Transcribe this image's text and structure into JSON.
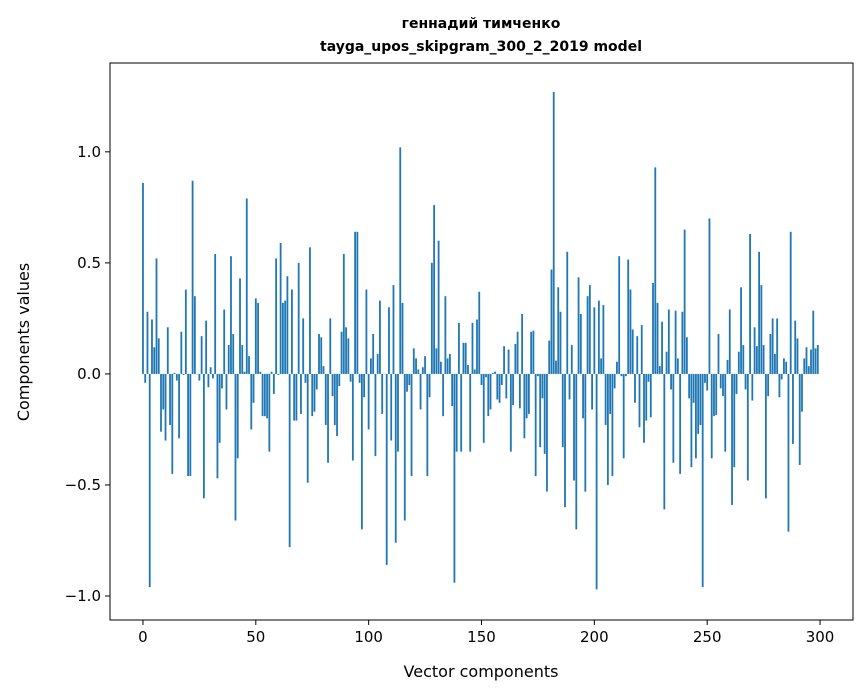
{
  "chart_data": {
    "type": "bar",
    "title": "геннадий тимченко",
    "subtitle": "tayga_upos_skipgram_300_2_2019 model",
    "xlabel": "Vector components",
    "ylabel": "Components values",
    "xlim": [
      -14.6,
      314.6
    ],
    "ylim": [
      -1.108,
      1.4
    ],
    "xticks": [
      0,
      50,
      100,
      150,
      200,
      250,
      300
    ],
    "xtick_labels": [
      "0",
      "50",
      "100",
      "150",
      "200",
      "250",
      "300"
    ],
    "yticks": [
      -1.0,
      -0.5,
      0.0,
      0.5,
      1.0
    ],
    "ytick_labels": [
      "−1.0",
      "−0.5",
      "0.0",
      "0.5",
      "1.0"
    ],
    "grid": false,
    "color": "#1f77b4",
    "values": [
      0.86,
      -0.04,
      0.28,
      -0.96,
      0.245,
      0.12,
      0.52,
      0.16,
      -0.26,
      -0.16,
      -0.3,
      0.21,
      -0.23,
      -0.45,
      0.005,
      -0.03,
      -0.29,
      0.19,
      -0.005,
      0.38,
      -0.46,
      -0.46,
      0.87,
      0.35,
      0.0,
      -0.03,
      0.17,
      -0.56,
      0.24,
      -0.06,
      0.03,
      -0.02,
      0.54,
      -0.47,
      -0.31,
      -0.065,
      0.29,
      -0.16,
      0.13,
      0.53,
      0.18,
      -0.66,
      -0.38,
      0.43,
      0.13,
      0.01,
      0.79,
      0.08,
      -0.25,
      -0.13,
      0.34,
      0.32,
      0.01,
      -0.19,
      -0.19,
      -0.2,
      -0.35,
      0.01,
      -0.09,
      0.52,
      -0.005,
      0.59,
      0.32,
      0.33,
      0.44,
      -0.78,
      0.38,
      -0.21,
      -0.21,
      0.5,
      -0.18,
      0.25,
      -0.04,
      -0.49,
      0.57,
      -0.19,
      -0.17,
      -0.07,
      0.18,
      0.165,
      0.035,
      -0.23,
      -0.4,
      0.25,
      -0.1,
      -0.23,
      -0.28,
      -0.055,
      0.19,
      0.54,
      0.21,
      0.16,
      -0.035,
      -0.39,
      0.64,
      0.64,
      -0.04,
      -0.7,
      -0.105,
      0.38,
      -0.25,
      0.07,
      0.18,
      -0.37,
      0.09,
      0.33,
      -0.18,
      0.0,
      -0.86,
      0.3,
      -0.3,
      0.4,
      -0.76,
      -0.35,
      1.02,
      0.32,
      -0.66,
      -0.08,
      -0.05,
      -0.46,
      0.115,
      0.07,
      0.02,
      -0.16,
      0.03,
      0.08,
      -0.46,
      -0.105,
      0.5,
      0.76,
      0.115,
      0.6,
      0.055,
      -0.19,
      0.35,
      0.07,
      0.09,
      -0.145,
      -0.94,
      -0.35,
      0.23,
      -0.35,
      0.14,
      0.14,
      0.04,
      -0.35,
      0.23,
      0.02,
      0.245,
      0.37,
      -0.05,
      -0.31,
      -0.015,
      -0.19,
      -0.16,
      0.005,
      0.01,
      -0.115,
      -0.13,
      -0.05,
      0.125,
      -0.11,
      0.11,
      -0.35,
      -0.14,
      0.135,
      0.19,
      -0.155,
      0.27,
      -0.29,
      -0.2,
      -0.18,
      0.19,
      0.195,
      -0.46,
      -0.01,
      -0.33,
      -0.11,
      -0.36,
      -0.53,
      0.15,
      0.47,
      1.27,
      0.06,
      0.39,
      0.28,
      -0.33,
      -0.6,
      0.55,
      -0.115,
      0.13,
      -0.48,
      -0.7,
      0.435,
      0.27,
      -0.2,
      -0.53,
      0.35,
      0.4,
      -0.16,
      0.3,
      -0.97,
      0.33,
      0.07,
      0.31,
      -0.23,
      -0.5,
      -0.18,
      -0.46,
      -0.065,
      0.055,
      0.53,
      -0.01,
      -0.38,
      -0.01,
      0.515,
      0.38,
      0.2,
      -0.13,
      0.17,
      -0.24,
      0.22,
      -0.31,
      -0.21,
      -0.035,
      -0.195,
      0.41,
      0.93,
      0.32,
      0.035,
      0.235,
      -0.61,
      0.1,
      0.29,
      -0.07,
      -0.4,
      0.285,
      0.07,
      -0.45,
      0.28,
      0.65,
      0.165,
      -0.11,
      -0.42,
      -0.13,
      -0.38,
      -0.27,
      -0.23,
      -0.96,
      -0.04,
      -0.075,
      0.7,
      -0.38,
      -0.19,
      -0.185,
      0.18,
      -0.065,
      -0.1,
      -0.35,
      0.063,
      0.29,
      -0.59,
      -0.42,
      -0.09,
      0.1,
      0.39,
      0.13,
      -0.07,
      -0.48,
      0.63,
      -0.12,
      0.21,
      0.125,
      0.55,
      0.4,
      0.13,
      -0.56,
      -0.1,
      0.18,
      0.25,
      0.09,
      0.25,
      -0.105,
      -0.025,
      0.07,
      0.055,
      -0.71,
      0.64,
      -0.315,
      0.24,
      0.16,
      -0.41,
      -0.17,
      0.07,
      0.12,
      0.035,
      0.11,
      0.285,
      0.115,
      0.13
    ]
  }
}
